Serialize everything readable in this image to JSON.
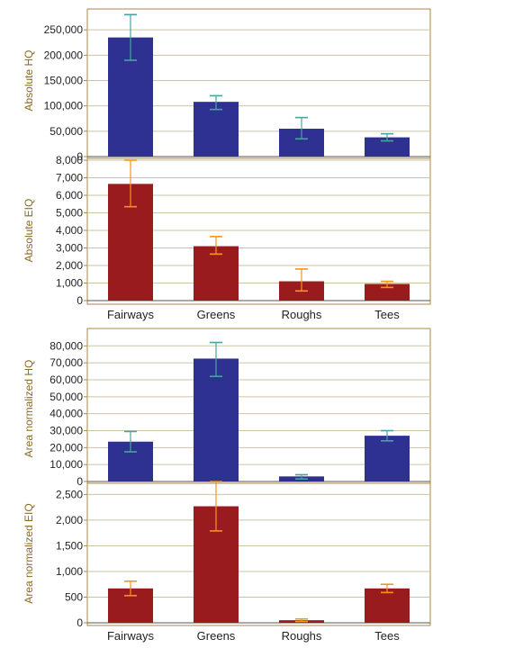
{
  "colors": {
    "frame": "#a8894a",
    "grid": "#cfc3a6",
    "axis_title": "#8b6a25",
    "blue_bar": "#2e3192",
    "red_bar": "#9a1b1e",
    "blue_error": "#4aa3a0",
    "red_error": "#f7941d"
  },
  "chart_data": [
    {
      "type": "bar",
      "categories": [
        "Fairways",
        "Greens",
        "Roughs",
        "Tees"
      ],
      "values": [
        235000,
        108000,
        55000,
        38000
      ],
      "error_low": [
        190000,
        93000,
        35000,
        31000
      ],
      "error_high": [
        280000,
        120000,
        77000,
        45000
      ],
      "ylabel": "Absolute HQ",
      "ylim": [
        0,
        300000
      ],
      "yticks": [
        0,
        50000,
        100000,
        150000,
        200000,
        250000
      ],
      "ytick_labels": [
        "0",
        "50,000",
        "100,000",
        "150,000",
        "200,000",
        "250,000"
      ],
      "bar_color": "#2e3192",
      "error_color": "#4aa3a0",
      "grid": true,
      "show_categories": false
    },
    {
      "type": "bar",
      "categories": [
        "Fairways",
        "Greens",
        "Roughs",
        "Tees"
      ],
      "values": [
        6650,
        3100,
        1100,
        950
      ],
      "error_low": [
        5350,
        2650,
        550,
        750
      ],
      "error_high": [
        8000,
        3650,
        1800,
        1100
      ],
      "ylabel": "Absolute EIQ",
      "ylim": [
        0,
        8000
      ],
      "yticks": [
        0,
        1000,
        2000,
        3000,
        4000,
        5000,
        6000,
        7000,
        8000
      ],
      "ytick_labels": [
        "0",
        "1,000",
        "2,000",
        "3,000",
        "4,000",
        "5,000",
        "6,000",
        "7,000",
        "8,000"
      ],
      "bar_color": "#9a1b1e",
      "error_color": "#f7941d",
      "grid": true,
      "show_categories": true
    },
    {
      "type": "bar",
      "categories": [
        "Fairways",
        "Greens",
        "Roughs",
        "Tees"
      ],
      "values": [
        23500,
        72500,
        3000,
        27000
      ],
      "error_low": [
        17500,
        62000,
        1500,
        24000
      ],
      "error_high": [
        29500,
        82000,
        4000,
        30000
      ],
      "ylabel": "Area normalized HQ",
      "ylim": [
        0,
        86000
      ],
      "yticks": [
        0,
        10000,
        20000,
        30000,
        40000,
        50000,
        60000,
        70000,
        80000
      ],
      "ytick_labels": [
        "0",
        "10,000",
        "20,000",
        "30,000",
        "40,000",
        "50,000",
        "60,000",
        "70,000",
        "80,000"
      ],
      "bar_color": "#2e3192",
      "error_color": "#4aa3a0",
      "grid": true,
      "show_categories": false
    },
    {
      "type": "bar",
      "categories": [
        "Fairways",
        "Greens",
        "Roughs",
        "Tees"
      ],
      "values": [
        670,
        2270,
        50,
        670
      ],
      "error_low": [
        530,
        1790,
        25,
        590
      ],
      "error_high": [
        810,
        2750,
        75,
        750
      ],
      "ylabel": "Area normalized EIQ",
      "ylim": [
        0,
        2700
      ],
      "yticks": [
        0,
        500,
        1000,
        1500,
        2000,
        2500
      ],
      "ytick_labels": [
        "0",
        "500",
        "1,000",
        "1,500",
        "2,000",
        "2,500"
      ],
      "bar_color": "#9a1b1e",
      "error_color": "#f7941d",
      "grid": true,
      "show_categories": true
    }
  ]
}
